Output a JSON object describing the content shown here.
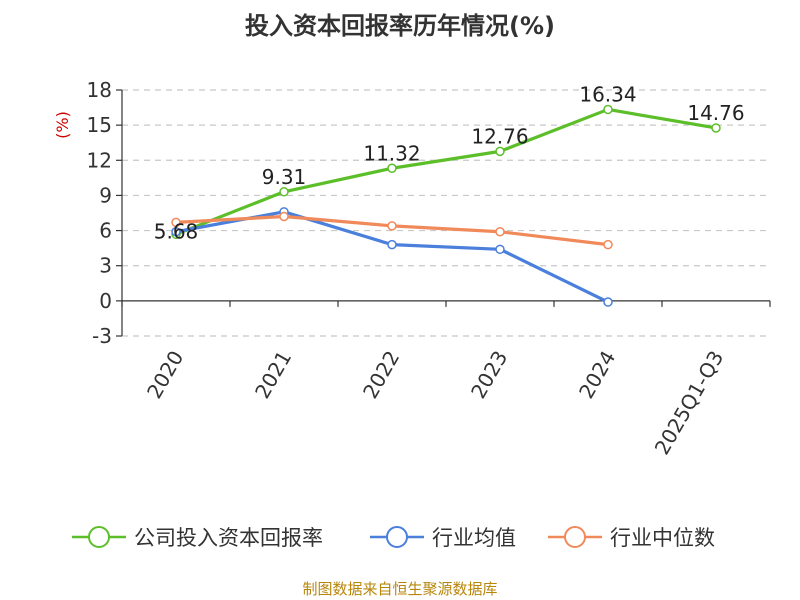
{
  "chart_data": {
    "type": "line",
    "title": "投入资本回报率历年情况(%)",
    "ylabel": "(%)",
    "categories": [
      "2020",
      "2021",
      "2022",
      "2023",
      "2024",
      "2025Q1-Q3"
    ],
    "ylim": [
      -3,
      18
    ],
    "yticks": [
      -3,
      0,
      3,
      6,
      9,
      12,
      15,
      18
    ],
    "grid": true,
    "legend_position": "bottom",
    "series": [
      {
        "name": "公司投入资本回报率",
        "color": "#5cbf2a",
        "values": [
          5.68,
          9.31,
          11.32,
          12.76,
          16.34,
          14.76
        ],
        "labels": [
          "5.68",
          "9.31",
          "11.32",
          "12.76",
          "16.34",
          "14.76"
        ]
      },
      {
        "name": "行业均值",
        "color": "#4a7fdc",
        "values": [
          5.9,
          7.6,
          4.8,
          4.4,
          -0.1,
          null
        ]
      },
      {
        "name": "行业中位数",
        "color": "#f08a5a",
        "values": [
          6.7,
          7.2,
          6.4,
          5.9,
          4.8,
          null
        ]
      }
    ]
  },
  "source": "制图数据来自恒生聚源数据库"
}
